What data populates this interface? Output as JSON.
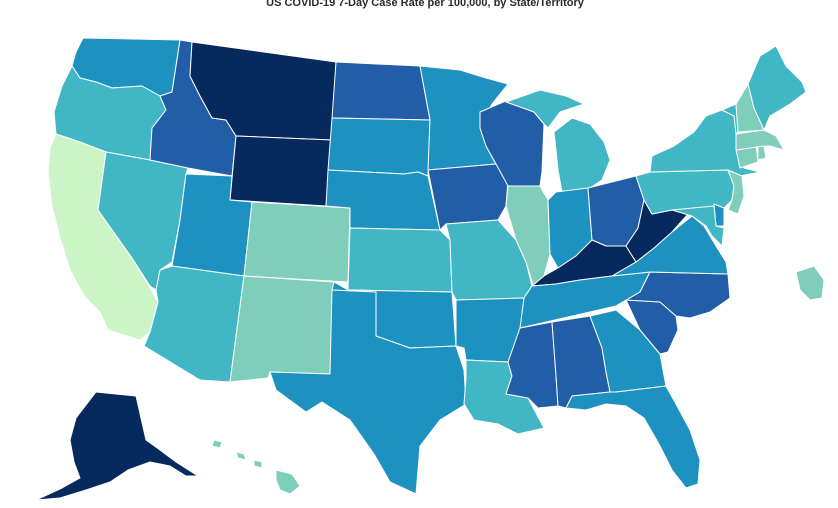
{
  "title": "US COVID-19 7-Day Case Rate per 100,000, by State/Territory",
  "colors": {
    "bin1": "#ccf5c7",
    "bin2": "#7fcdbb",
    "bin3": "#41b6c4",
    "bin4": "#1d91c0",
    "bin5": "#225ea8",
    "bin6": "#0c2c84",
    "bin7": "#06295e"
  },
  "states": [
    {
      "id": "AK",
      "bin": "bin7"
    },
    {
      "id": "HI",
      "bin": "bin2"
    },
    {
      "id": "WA",
      "bin": "bin4"
    },
    {
      "id": "OR",
      "bin": "bin3"
    },
    {
      "id": "CA",
      "bin": "bin1"
    },
    {
      "id": "NV",
      "bin": "bin3"
    },
    {
      "id": "ID",
      "bin": "bin5"
    },
    {
      "id": "MT",
      "bin": "bin7"
    },
    {
      "id": "WY",
      "bin": "bin7"
    },
    {
      "id": "UT",
      "bin": "bin4"
    },
    {
      "id": "AZ",
      "bin": "bin3"
    },
    {
      "id": "CO",
      "bin": "bin2"
    },
    {
      "id": "NM",
      "bin": "bin2"
    },
    {
      "id": "ND",
      "bin": "bin5"
    },
    {
      "id": "SD",
      "bin": "bin4"
    },
    {
      "id": "NE",
      "bin": "bin4"
    },
    {
      "id": "KS",
      "bin": "bin3"
    },
    {
      "id": "OK",
      "bin": "bin4"
    },
    {
      "id": "TX",
      "bin": "bin4"
    },
    {
      "id": "MN",
      "bin": "bin4"
    },
    {
      "id": "IA",
      "bin": "bin5"
    },
    {
      "id": "MO",
      "bin": "bin3"
    },
    {
      "id": "AR",
      "bin": "bin4"
    },
    {
      "id": "LA",
      "bin": "bin3"
    },
    {
      "id": "WI",
      "bin": "bin5"
    },
    {
      "id": "IL",
      "bin": "bin2"
    },
    {
      "id": "MI",
      "bin": "bin3"
    },
    {
      "id": "IN",
      "bin": "bin4"
    },
    {
      "id": "OH",
      "bin": "bin5"
    },
    {
      "id": "KY",
      "bin": "bin7"
    },
    {
      "id": "TN",
      "bin": "bin4"
    },
    {
      "id": "MS",
      "bin": "bin5"
    },
    {
      "id": "AL",
      "bin": "bin5"
    },
    {
      "id": "GA",
      "bin": "bin4"
    },
    {
      "id": "FL",
      "bin": "bin4"
    },
    {
      "id": "SC",
      "bin": "bin5"
    },
    {
      "id": "NC",
      "bin": "bin5"
    },
    {
      "id": "VA",
      "bin": "bin4"
    },
    {
      "id": "WV",
      "bin": "bin7"
    },
    {
      "id": "PA",
      "bin": "bin3"
    },
    {
      "id": "NY",
      "bin": "bin3"
    },
    {
      "id": "NJ",
      "bin": "bin2"
    },
    {
      "id": "DE",
      "bin": "bin4"
    },
    {
      "id": "MD",
      "bin": "bin3"
    },
    {
      "id": "CT",
      "bin": "bin2"
    },
    {
      "id": "RI",
      "bin": "bin2"
    },
    {
      "id": "MA",
      "bin": "bin2"
    },
    {
      "id": "VT",
      "bin": "bin3"
    },
    {
      "id": "NH",
      "bin": "bin2"
    },
    {
      "id": "ME",
      "bin": "bin3"
    },
    {
      "id": "PR",
      "bin": "bin2"
    }
  ]
}
